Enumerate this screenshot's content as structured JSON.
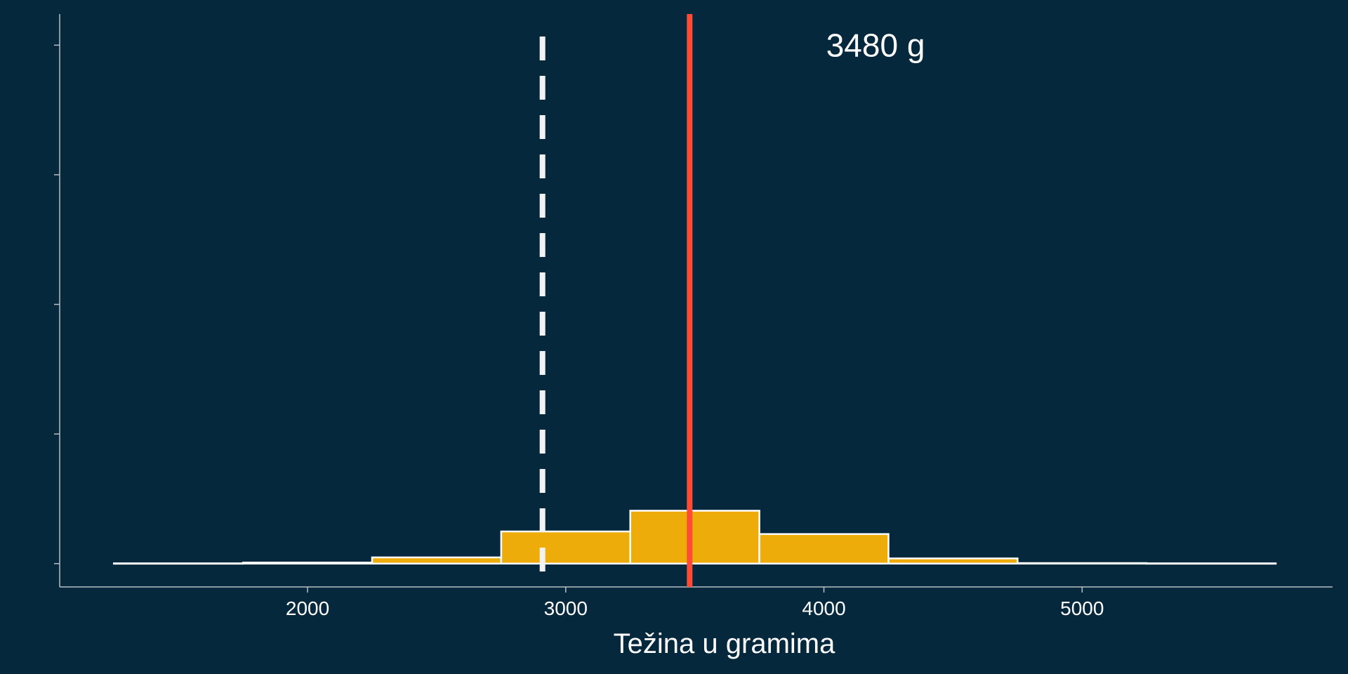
{
  "colors": {
    "background": "#06283d",
    "bar_fill": "#eeac0a",
    "bar_stroke": "#ffffff",
    "axis": "#b8bec4",
    "mean_line": "#ff4a36",
    "dashed_line": "#f2f2f2"
  },
  "chart_data": {
    "type": "bar",
    "subtype": "histogram",
    "title": "",
    "xlabel": "Težina u gramima",
    "ylabel": "",
    "xlim": [
      1040,
      5970
    ],
    "ylim": [
      -0.045,
      1.06
    ],
    "grid": false,
    "legend": "none",
    "x_ticks": [
      2000,
      3000,
      4000,
      5000
    ],
    "x_tick_labels": [
      "2000",
      "3000",
      "4000",
      "5000"
    ],
    "y_ticks": [
      0,
      0.25,
      0.5,
      0.75,
      1.0
    ],
    "y_tick_labels_visible": false,
    "bin_width": 500,
    "bins": [
      {
        "start": 1250,
        "end": 1750,
        "value": 0.0005
      },
      {
        "start": 1750,
        "end": 2250,
        "value": 0.002
      },
      {
        "start": 2250,
        "end": 2750,
        "value": 0.012
      },
      {
        "start": 2750,
        "end": 3250,
        "value": 0.062
      },
      {
        "start": 3250,
        "end": 3750,
        "value": 0.102
      },
      {
        "start": 3750,
        "end": 4250,
        "value": 0.057
      },
      {
        "start": 4250,
        "end": 4750,
        "value": 0.01
      },
      {
        "start": 4750,
        "end": 5250,
        "value": 0.001
      },
      {
        "start": 5250,
        "end": 5750,
        "value": 0.0005
      }
    ],
    "reference_lines": [
      {
        "kind": "dashed",
        "x": 2910
      },
      {
        "kind": "solid",
        "x": 3480
      }
    ],
    "annotations": [
      {
        "text": "3480 g",
        "x": 4200,
        "y": 1.0
      }
    ]
  }
}
